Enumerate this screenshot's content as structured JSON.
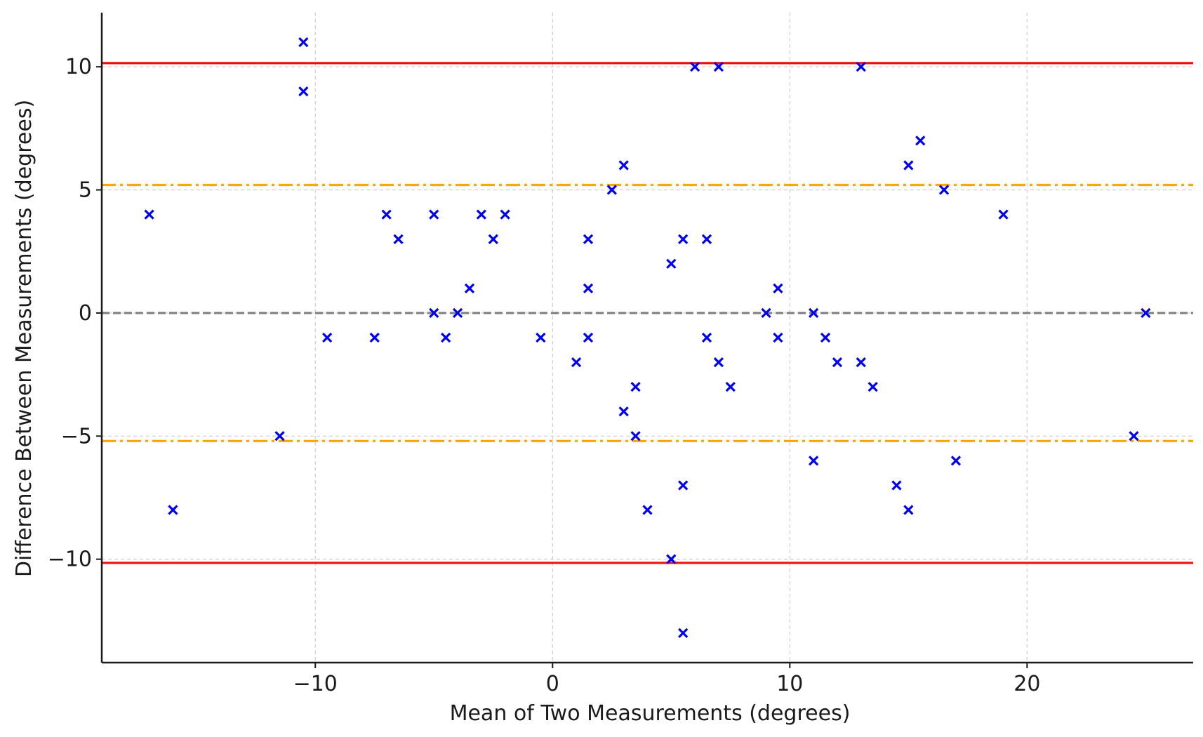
{
  "chart_data": {
    "type": "scatter",
    "title": "",
    "xlabel": "Mean of Two Measurements (degrees)",
    "ylabel": "Difference Between Measurements (degrees)",
    "xlim": [
      -19,
      27
    ],
    "ylim": [
      -14.2,
      12.2
    ],
    "x_ticks": [
      -10,
      0,
      10,
      20
    ],
    "y_ticks": [
      -10,
      -5,
      0,
      5,
      10
    ],
    "x_tick_labels": [
      "−10",
      "0",
      "10",
      "20"
    ],
    "y_tick_labels": [
      "−10",
      "−5",
      "0",
      "5",
      "10"
    ],
    "grid": true,
    "marker": "x",
    "colors": {
      "points": "#0000ee",
      "limits": "#ee1111",
      "sd_lines": "#ffa500",
      "mean_line": "#808080",
      "grid": "#cccccc"
    },
    "reference_lines": [
      {
        "y": 10.15,
        "style": "solid",
        "color": "#ee1111"
      },
      {
        "y": -10.15,
        "style": "solid",
        "color": "#ee1111"
      },
      {
        "y": 5.2,
        "style": "dashdot",
        "color": "#ffa500"
      },
      {
        "y": -5.2,
        "style": "dashdot",
        "color": "#ffa500"
      },
      {
        "y": 0,
        "style": "dashed",
        "color": "#808080"
      }
    ],
    "points": [
      {
        "x": -17,
        "y": 4
      },
      {
        "x": -16,
        "y": -8
      },
      {
        "x": -11.5,
        "y": -5
      },
      {
        "x": -10.5,
        "y": 11
      },
      {
        "x": -10.5,
        "y": 9
      },
      {
        "x": -9.5,
        "y": -1
      },
      {
        "x": -7.5,
        "y": -1
      },
      {
        "x": -7,
        "y": 4
      },
      {
        "x": -6.5,
        "y": 3
      },
      {
        "x": -5,
        "y": 4
      },
      {
        "x": -5,
        "y": 0
      },
      {
        "x": -4.5,
        "y": -1
      },
      {
        "x": -4,
        "y": 0
      },
      {
        "x": -3.5,
        "y": 1
      },
      {
        "x": -3,
        "y": 4
      },
      {
        "x": -2.5,
        "y": 3
      },
      {
        "x": -2,
        "y": 4
      },
      {
        "x": -0.5,
        "y": -1
      },
      {
        "x": 1,
        "y": -2
      },
      {
        "x": 1.5,
        "y": 3
      },
      {
        "x": 1.5,
        "y": 1
      },
      {
        "x": 1.5,
        "y": -1
      },
      {
        "x": 2.5,
        "y": 5
      },
      {
        "x": 3,
        "y": 6
      },
      {
        "x": 3,
        "y": -4
      },
      {
        "x": 3.5,
        "y": -3
      },
      {
        "x": 3.5,
        "y": -5
      },
      {
        "x": 4,
        "y": -8
      },
      {
        "x": 5,
        "y": 2
      },
      {
        "x": 5,
        "y": -10
      },
      {
        "x": 5.5,
        "y": 3
      },
      {
        "x": 5.5,
        "y": -7
      },
      {
        "x": 5.5,
        "y": -13
      },
      {
        "x": 6,
        "y": 10
      },
      {
        "x": 6.5,
        "y": 3
      },
      {
        "x": 6.5,
        "y": -1
      },
      {
        "x": 7,
        "y": 10
      },
      {
        "x": 7,
        "y": -2
      },
      {
        "x": 7.5,
        "y": -3
      },
      {
        "x": 9,
        "y": 0
      },
      {
        "x": 9.5,
        "y": 1
      },
      {
        "x": 9.5,
        "y": -1
      },
      {
        "x": 11,
        "y": 0
      },
      {
        "x": 11,
        "y": -6
      },
      {
        "x": 11.5,
        "y": -1
      },
      {
        "x": 12,
        "y": -2
      },
      {
        "x": 13,
        "y": 10
      },
      {
        "x": 13,
        "y": -2
      },
      {
        "x": 13.5,
        "y": -3
      },
      {
        "x": 14.5,
        "y": -7
      },
      {
        "x": 15,
        "y": 6
      },
      {
        "x": 15,
        "y": -8
      },
      {
        "x": 15.5,
        "y": 7
      },
      {
        "x": 16.5,
        "y": 5
      },
      {
        "x": 17,
        "y": -6
      },
      {
        "x": 19,
        "y": 4
      },
      {
        "x": 24.5,
        "y": -5
      },
      {
        "x": 25,
        "y": 0
      }
    ]
  }
}
